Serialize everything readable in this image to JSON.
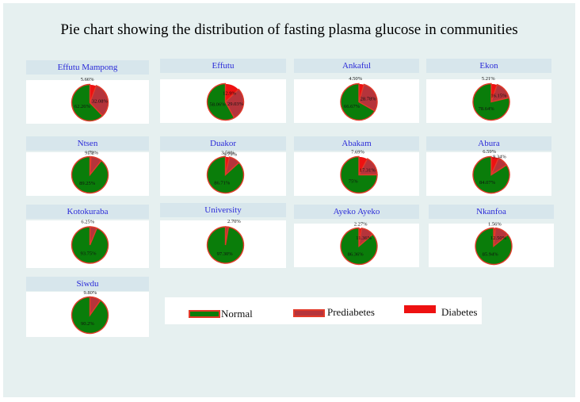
{
  "title": "Pie chart showing the distribution of fasting plasma glucose in communities",
  "colors": {
    "normal": "#0a7d0a",
    "prediabetes": "#b5343b",
    "diabetes": "#ee1111",
    "slice_border": "#e23a2a"
  },
  "chart_data": {
    "type": "pie",
    "title": "Pie chart showing the distribution of fasting plasma glucose in communities",
    "legend": [
      "Normal",
      "Prediabetes",
      "Diabetes"
    ],
    "legend_placement": "bottom",
    "panels": [
      {
        "name": "Effutu Mampong",
        "labels": [
          "62.26%",
          "32.08%",
          "5.66%"
        ],
        "values": [
          62.26,
          32.08,
          5.66
        ]
      },
      {
        "name": "Effutu",
        "labels": [
          "58.06%",
          "29.03%",
          "12.9%"
        ],
        "values": [
          58.06,
          29.03,
          12.9
        ]
      },
      {
        "name": "Ankaful",
        "labels": [
          "66.67%",
          "28.78%",
          "4.50%"
        ],
        "values": [
          66.67,
          28.78,
          4.5
        ]
      },
      {
        "name": "Ekon",
        "labels": [
          "78.64%",
          "16.15%",
          "5.21%"
        ],
        "values": [
          78.64,
          16.15,
          5.21
        ]
      },
      {
        "name": "Ntsen",
        "labels": [
          "89.25%",
          "9.72%",
          "1%"
        ],
        "values": [
          89.25,
          9.72,
          1.0
        ]
      },
      {
        "name": "Duakor",
        "labels": [
          "86.71%",
          "9.79%",
          "3.50%"
        ],
        "values": [
          86.71,
          9.79,
          3.5
        ]
      },
      {
        "name": "Abakam",
        "labels": [
          "75%",
          "17.31%",
          "7.69%"
        ],
        "values": [
          75.0,
          17.31,
          7.69
        ]
      },
      {
        "name": "Abura",
        "labels": [
          "84.07%",
          "9.34%",
          "6.59%"
        ],
        "values": [
          84.07,
          9.34,
          6.59
        ]
      },
      {
        "name": "Kotokuraba",
        "labels": [
          "93.75%",
          "6.25%",
          ""
        ],
        "values": [
          93.75,
          6.25,
          0
        ]
      },
      {
        "name": "University",
        "labels": [
          "97.30%",
          "2.70%",
          ""
        ],
        "values": [
          97.3,
          2.7,
          0
        ]
      },
      {
        "name": "Ayeko Ayeko",
        "labels": [
          "86.36%",
          "11.36%",
          "2.27%"
        ],
        "values": [
          86.36,
          11.36,
          2.27
        ]
      },
      {
        "name": "Nkanfoa",
        "labels": [
          "85.94%",
          "12.50%",
          "1.56%"
        ],
        "values": [
          85.94,
          12.5,
          1.56
        ]
      },
      {
        "name": "Siwdu",
        "labels": [
          "90.2%",
          "9.80%",
          ""
        ],
        "values": [
          90.2,
          9.8,
          0
        ]
      }
    ]
  }
}
